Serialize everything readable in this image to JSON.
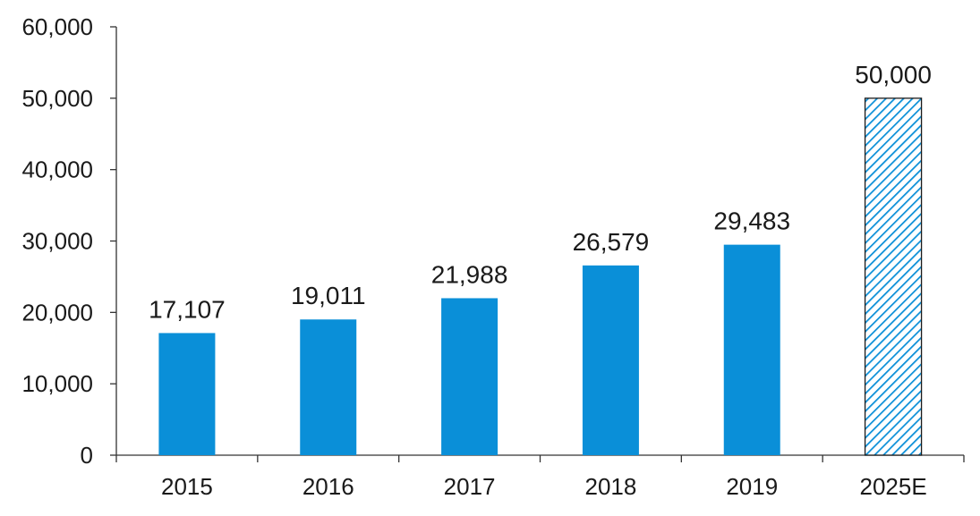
{
  "chart_data": {
    "type": "bar",
    "categories": [
      "2015",
      "2016",
      "2017",
      "2018",
      "2019",
      "2025E"
    ],
    "values": [
      17107,
      19011,
      21988,
      26579,
      29483,
      50000
    ],
    "data_labels": [
      "17,107",
      "19,011",
      "21,988",
      "26,579",
      "29,483",
      "50,000"
    ],
    "estimate_flags": [
      false,
      false,
      false,
      false,
      false,
      true
    ],
    "title": "",
    "xlabel": "",
    "ylabel": "",
    "ylim": [
      0,
      60000
    ],
    "yticks": [
      0,
      10000,
      20000,
      30000,
      40000,
      50000,
      60000
    ],
    "ytick_labels": [
      "0",
      "10,000",
      "20,000",
      "30,000",
      "40,000",
      "50,000",
      "60,000"
    ],
    "grid": false,
    "legend": "none",
    "colors": {
      "bar": "#0a8fd8",
      "estimate_hatch": "#0a8fd8",
      "estimate_fill": "#ffffff",
      "estimate_border": "#1a1a1a",
      "axis": "#333333",
      "text": "#1a1a1a"
    }
  }
}
